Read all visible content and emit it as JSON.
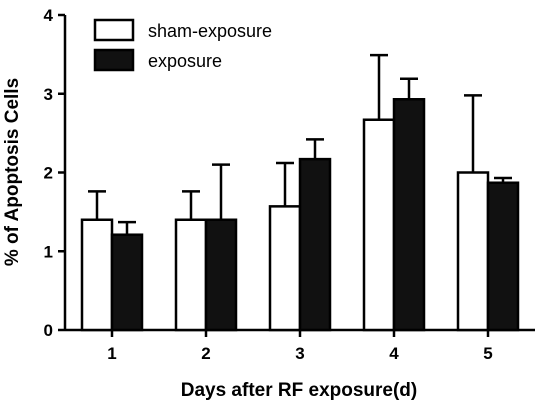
{
  "chart_data": {
    "type": "bar",
    "title": "",
    "xlabel": "Days after RF exposure(d)",
    "ylabel": "% of Apoptosis Cells",
    "ylim": [
      0,
      4
    ],
    "yticks": [
      "0",
      "1",
      "2",
      "3",
      "4"
    ],
    "categories": [
      "1",
      "2",
      "3",
      "4",
      "5"
    ],
    "series": [
      {
        "name": "sham-exposure",
        "fill": "#ffffff",
        "values": [
          1.4,
          1.4,
          1.57,
          2.67,
          2.0
        ],
        "errors": [
          0.36,
          0.36,
          0.55,
          0.82,
          0.98
        ]
      },
      {
        "name": "exposure",
        "fill": "#111111",
        "values": [
          1.21,
          1.4,
          2.17,
          2.93,
          1.87
        ],
        "errors": [
          0.16,
          0.7,
          0.25,
          0.26,
          0.06
        ]
      }
    ],
    "legend_position": "top-left",
    "grid": false
  }
}
